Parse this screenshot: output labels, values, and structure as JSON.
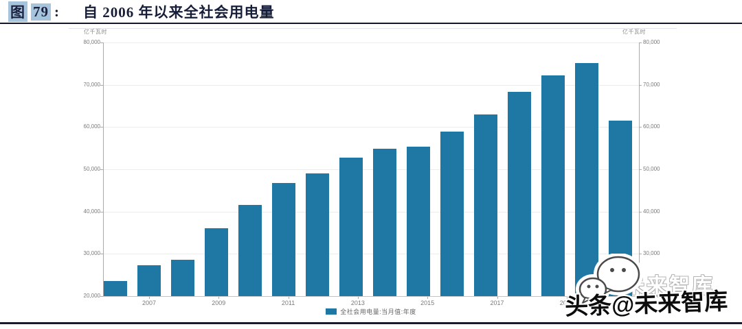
{
  "header": {
    "figure_label": "图",
    "figure_number": "79",
    "colon": ":",
    "title": "自 2006 年以来全社会用电量"
  },
  "chart_data": {
    "type": "bar",
    "title": "自2006年以来全社会用电量",
    "unit_label_left": "亿千瓦时",
    "unit_label_right": "亿千瓦时",
    "categories": [
      "2006",
      "2007",
      "2008",
      "2009",
      "2010",
      "2011",
      "2012",
      "2013",
      "2014",
      "2015",
      "2016",
      "2017",
      "2018",
      "2019",
      "2020",
      "2021"
    ],
    "values": [
      23600,
      27300,
      28600,
      36100,
      41600,
      46700,
      49100,
      52800,
      54800,
      55300,
      58900,
      62900,
      68300,
      72200,
      75100,
      61500
    ],
    "x_tick_labels": [
      "2007",
      "2009",
      "2011",
      "2013",
      "2015",
      "2017",
      "2019"
    ],
    "y_ticks": [
      20000,
      30000,
      40000,
      50000,
      60000,
      70000,
      80000
    ],
    "ylim": [
      20000,
      80000
    ],
    "grid": true,
    "bar_color": "#1f77a4",
    "legend_position": "bottom",
    "legend": [
      {
        "label": "全社会用电量:当月值:年度",
        "color": "#1f77a4"
      }
    ]
  },
  "watermark": {
    "main_text": "头条@未来智库",
    "ghost_text": "未来智库",
    "icon": "wechat-icon"
  }
}
